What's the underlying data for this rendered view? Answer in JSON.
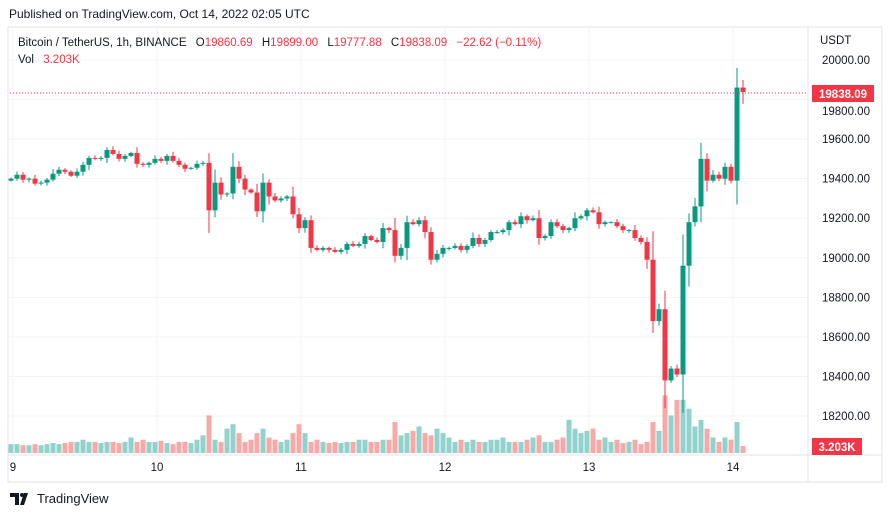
{
  "published": "Published on TradingView.com, Oct 14, 2022 02:05 UTC",
  "legend": {
    "symbol": "Bitcoin / TetherUS, 1h, BINANCE",
    "open_label": "O",
    "open": "19860.69",
    "high_label": "H",
    "high": "19899.00",
    "low_label": "L",
    "low": "19777.88",
    "close_label": "C",
    "close": "19838.09",
    "change": "−22.62 (−0.11%)",
    "vol_label": "Vol",
    "vol": "3.203K"
  },
  "brand": "TradingView",
  "colors": {
    "up": "#089981",
    "down": "#f23645",
    "up_vol": "#92d2cc",
    "down_vol": "#f7a9a7",
    "grid": "#f0f3fa"
  },
  "chart_data": {
    "type": "candlestick",
    "title": "Bitcoin / TetherUS, 1h, BINANCE",
    "currency": "USDT",
    "ylim": [
      18060,
      20060
    ],
    "y_ticks": [
      "20000.00",
      "19800.00",
      "19600.00",
      "19400.00",
      "19200.00",
      "19000.00",
      "18800.00",
      "18600.00",
      "18400.00",
      "18200.00"
    ],
    "x_ticks": [
      {
        "label": "9",
        "index": 0
      },
      {
        "label": "10",
        "index": 24
      },
      {
        "label": "11",
        "index": 48
      },
      {
        "label": "12",
        "index": 72
      },
      {
        "label": "13",
        "index": 96
      },
      {
        "label": "14",
        "index": 120
      }
    ],
    "last_price_label": "19838.09",
    "last_volume_label": "3.203K",
    "volume_unit": "K",
    "closes": [
      19400,
      19420,
      19395,
      19400,
      19375,
      19380,
      19395,
      19425,
      19445,
      19435,
      19415,
      19435,
      19470,
      19505,
      19500,
      19505,
      19545,
      19525,
      19500,
      19515,
      19530,
      19475,
      19470,
      19480,
      19500,
      19490,
      19515,
      19490,
      19470,
      19450,
      19455,
      19475,
      19480,
      19240,
      19380,
      19320,
      19325,
      19460,
      19400,
      19345,
      19330,
      19235,
      19380,
      19310,
      19290,
      19300,
      19310,
      19220,
      19150,
      19190,
      19050,
      19040,
      19050,
      19040,
      19030,
      19040,
      19070,
      19060,
      19070,
      19110,
      19090,
      19080,
      19150,
      19140,
      19010,
      19050,
      19180,
      19170,
      19190,
      19130,
      18990,
      19020,
      19050,
      19050,
      19060,
      19040,
      19060,
      19100,
      19070,
      19090,
      19130,
      19130,
      19140,
      19180,
      19170,
      19210,
      19190,
      19200,
      19100,
      19110,
      19180,
      19160,
      19140,
      19150,
      19200,
      19210,
      19240,
      19230,
      19170,
      19180,
      19180,
      19160,
      19140,
      19140,
      19100,
      19080,
      18990,
      18680,
      18740,
      18380,
      18440,
      18410,
      18960,
      19180,
      19260,
      19500,
      19390,
      19420,
      19400,
      19460,
      19390,
      19860.69,
      19838.09
    ],
    "first_open": 19390,
    "volumes_k": [
      4,
      4,
      3.5,
      3.5,
      4,
      3.5,
      4,
      4.5,
      4,
      4.5,
      5,
      5,
      6,
      5,
      5,
      4.5,
      5,
      5,
      4.5,
      5,
      7,
      5,
      6,
      5,
      5,
      5.5,
      4.5,
      4,
      5,
      5,
      4.5,
      6,
      8,
      17,
      6,
      5,
      11,
      13,
      9,
      5,
      6,
      9,
      11,
      7,
      6,
      5,
      6,
      9,
      13,
      9,
      5,
      6,
      5,
      4.5,
      5,
      4.5,
      5,
      5,
      6,
      6,
      5,
      5,
      6,
      6,
      14,
      8,
      9,
      10,
      12,
      9,
      8,
      11,
      9,
      7,
      5,
      6,
      5,
      6,
      5,
      5,
      6,
      6,
      7,
      5,
      5,
      5,
      6,
      7,
      8,
      5,
      5,
      6,
      7,
      15,
      11,
      9,
      10,
      11,
      6,
      7,
      5,
      6,
      4.5,
      5,
      6,
      4,
      5,
      14,
      10,
      26,
      17,
      24,
      24,
      20,
      12,
      15,
      11,
      7,
      5,
      7,
      6,
      14,
      3.203
    ],
    "volume_max_k": 28
  }
}
